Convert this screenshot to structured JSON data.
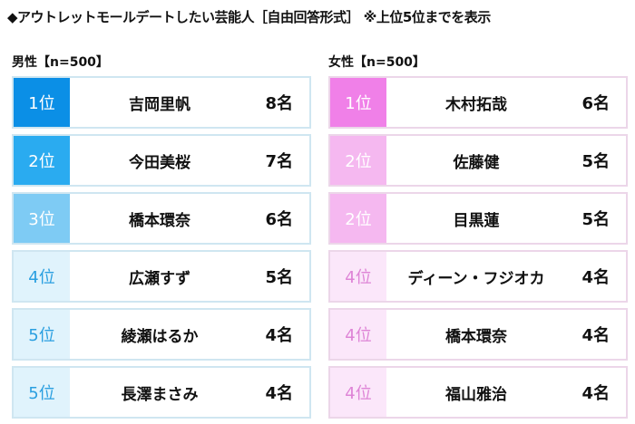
{
  "title": "◆アウトレットモールデートしたい芸能人［自由回答形式］ ※上位5位までを表示",
  "male": {
    "header": "男性【n=500】",
    "rows": [
      {
        "rank": "1位",
        "name": "吉岡里帆",
        "count": "8名",
        "bg": "#0b8fe6",
        "fg": "#ffffff"
      },
      {
        "rank": "2位",
        "name": "今田美桜",
        "count": "7名",
        "bg": "#2aabf0",
        "fg": "#ffffff"
      },
      {
        "rank": "3位",
        "name": "橋本環奈",
        "count": "6名",
        "bg": "#7ecbf4",
        "fg": "#ffffff"
      },
      {
        "rank": "4位",
        "name": "広瀬すず",
        "count": "5名",
        "bg": "#e0f3fc",
        "fg": "#2a9fe0"
      },
      {
        "rank": "5位",
        "name": "綾瀬はるか",
        "count": "4名",
        "bg": "#e0f3fc",
        "fg": "#2a9fe0"
      },
      {
        "rank": "5位",
        "name": "長澤まさみ",
        "count": "4名",
        "bg": "#e0f3fc",
        "fg": "#2a9fe0"
      }
    ]
  },
  "female": {
    "header": "女性【n=500】",
    "rows": [
      {
        "rank": "1位",
        "name": "木村拓哉",
        "count": "6名",
        "bg": "#f080e8",
        "fg": "#ffffff"
      },
      {
        "rank": "2位",
        "name": "佐藤健",
        "count": "5名",
        "bg": "#f5b8f0",
        "fg": "#ffffff"
      },
      {
        "rank": "2位",
        "name": "目黒蓮",
        "count": "5名",
        "bg": "#f5b8f0",
        "fg": "#ffffff"
      },
      {
        "rank": "4位",
        "name": "ディーン・フジオカ",
        "count": "4名",
        "bg": "#fbe7fa",
        "fg": "#de84d6"
      },
      {
        "rank": "4位",
        "name": "橋本環奈",
        "count": "4名",
        "bg": "#fbe7fa",
        "fg": "#de84d6"
      },
      {
        "rank": "4位",
        "name": "福山雅治",
        "count": "4名",
        "bg": "#fbe7fa",
        "fg": "#de84d6"
      }
    ]
  }
}
